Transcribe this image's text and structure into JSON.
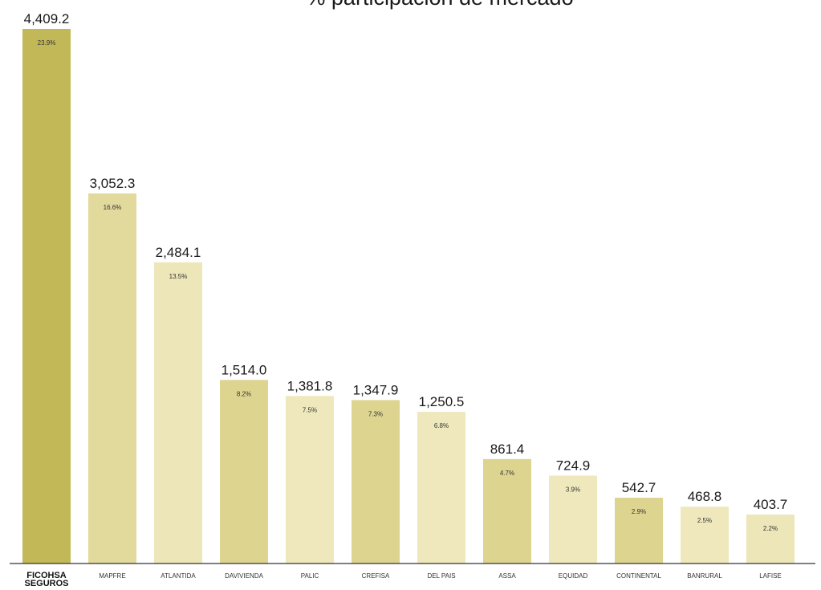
{
  "chart_data": {
    "type": "bar",
    "title": "% participación de mercado",
    "xlabel": "",
    "ylabel": "",
    "ylim": [
      0,
      4409.2
    ],
    "grid": false,
    "legend": "none",
    "categories": [
      "FICOHSA SEGUROS",
      "MAPFRE",
      "ATLANTIDA",
      "DAVIVIENDA",
      "PALIC",
      "CREFISA",
      "DEL PAIS",
      "ASSA",
      "EQUIDAD",
      "CONTINENTAL",
      "BANRURAL",
      "LAFISE"
    ],
    "values": [
      4409.2,
      3052.3,
      2484.1,
      1514.0,
      1381.8,
      1347.9,
      1250.5,
      861.4,
      724.9,
      542.7,
      468.8,
      403.7
    ],
    "value_labels": [
      "4,409.2",
      "3,052.3",
      "2,484.1",
      "1,514.0",
      "1,381.8",
      "1,347.9",
      "1,250.5",
      "861.4",
      "724.9",
      "542.7",
      "468.8",
      "403.7"
    ],
    "percent_labels": [
      "23.9%",
      "16.6%",
      "13.5%",
      "8.2%",
      "7.5%",
      "7.3%",
      "6.8%",
      "4.7%",
      "3.9%",
      "2.9%",
      "2.5%",
      "2.2%"
    ],
    "bar_colors": [
      "#c2b858",
      "#e2d99c",
      "#ede6b8",
      "#ddd490",
      "#eee8bc",
      "#ddd490",
      "#eee8bc",
      "#ddd490",
      "#eee8bc",
      "#ddd490",
      "#eee8bc",
      "#ede6b8"
    ],
    "axis_color": "#333333"
  }
}
